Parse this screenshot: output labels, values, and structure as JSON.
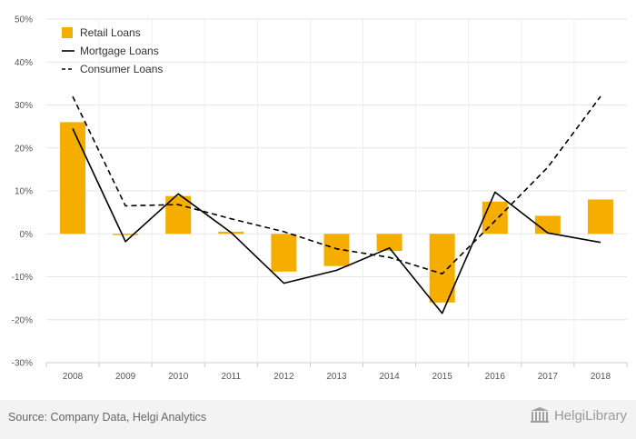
{
  "chart_data": {
    "type": "bar",
    "categories": [
      "2008",
      "2009",
      "2010",
      "2011",
      "2012",
      "2013",
      "2014",
      "2015",
      "2016",
      "2017",
      "2018"
    ],
    "series": [
      {
        "name": "Retail Loans",
        "type": "bar",
        "color": "#f5ad00",
        "values": [
          26.0,
          -0.3,
          8.8,
          0.5,
          -8.8,
          -7.5,
          -4.0,
          -16.0,
          7.5,
          4.2,
          8.0
        ]
      },
      {
        "name": "Mortgage Loans",
        "type": "line",
        "style": "solid",
        "color": "#000000",
        "values": [
          24.5,
          -1.8,
          9.3,
          0.3,
          -11.5,
          -8.5,
          -3.3,
          -18.5,
          9.7,
          0.2,
          -2.0
        ]
      },
      {
        "name": "Consumer Loans",
        "type": "line",
        "style": "dashed",
        "color": "#000000",
        "values": [
          32.0,
          6.5,
          6.8,
          3.5,
          0.5,
          -3.5,
          -5.5,
          -9.3,
          3.0,
          15.5,
          32.0
        ]
      }
    ],
    "ylim": [
      -30,
      50
    ],
    "yticks": [
      -30,
      -20,
      -10,
      0,
      10,
      20,
      30,
      40,
      50
    ],
    "ytick_labels": [
      "-30%",
      "-20%",
      "-10%",
      "0%",
      "10%",
      "20%",
      "30%",
      "40%",
      "50%"
    ],
    "grid": true,
    "legend_position": "top-left"
  },
  "footer": {
    "source": "Source: Company Data, Helgi Analytics",
    "brand": "HelgiLibrary"
  }
}
